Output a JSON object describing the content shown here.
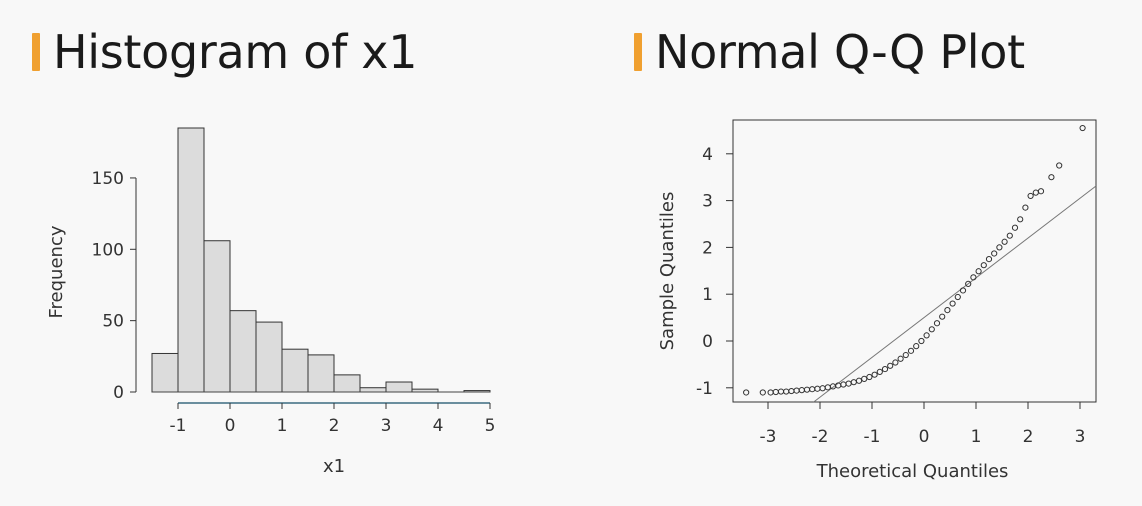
{
  "accent_color": "#f0a030",
  "chart_data": [
    {
      "type": "bar",
      "title": "Histogram of x1",
      "xlabel": "x1",
      "ylabel": "Frequency",
      "bin_edges": [
        -1.5,
        -1,
        -0.5,
        0,
        0.5,
        1,
        1.5,
        2,
        2.5,
        3,
        3.5,
        4,
        4.5,
        5
      ],
      "values": [
        27,
        185,
        106,
        57,
        49,
        30,
        26,
        12,
        3,
        7,
        2,
        0,
        1
      ],
      "xticks": [
        -1,
        0,
        1,
        2,
        3,
        4,
        5
      ],
      "xtick_labels": [
        "-1",
        "0",
        "1",
        "2",
        "3",
        "4",
        "5"
      ],
      "yticks": [
        0,
        50,
        100,
        150
      ],
      "ytick_labels": [
        "0",
        "50",
        "100",
        "150"
      ],
      "ylim": [
        0,
        185
      ],
      "bar_color": "#dcdcdc",
      "grid": false
    },
    {
      "type": "scatter",
      "title": "Normal Q-Q Plot",
      "xlabel": "Theoretical Quantiles",
      "ylabel": "Sample Quantiles",
      "xticks": [
        -3,
        -2,
        -1,
        0,
        1,
        2,
        3
      ],
      "xtick_labels": [
        "-3",
        "-2",
        "-1",
        "0",
        "1",
        "2",
        "3"
      ],
      "yticks": [
        -1,
        0,
        1,
        2,
        3,
        4
      ],
      "ytick_labels": [
        "-1",
        "0",
        "1",
        "2",
        "3",
        "4"
      ],
      "xlim": [
        -3.3,
        3.1
      ],
      "ylim": [
        -1.2,
        4.6
      ],
      "x": [
        -3.42,
        -3.1,
        -2.95,
        -2.85,
        -2.75,
        -2.65,
        -2.55,
        -2.45,
        -2.35,
        -2.25,
        -2.15,
        -2.05,
        -1.95,
        -1.85,
        -1.75,
        -1.65,
        -1.55,
        -1.45,
        -1.35,
        -1.25,
        -1.15,
        -1.05,
        -0.95,
        -0.85,
        -0.75,
        -0.65,
        -0.55,
        -0.45,
        -0.35,
        -0.25,
        -0.15,
        -0.05,
        0.05,
        0.15,
        0.25,
        0.35,
        0.45,
        0.55,
        0.65,
        0.75,
        0.85,
        0.95,
        1.05,
        1.15,
        1.25,
        1.35,
        1.45,
        1.55,
        1.65,
        1.75,
        1.85,
        1.95,
        2.05,
        2.15,
        2.25,
        2.45,
        2.6,
        3.05
      ],
      "y": [
        -1.1,
        -1.1,
        -1.1,
        -1.09,
        -1.08,
        -1.08,
        -1.07,
        -1.06,
        -1.05,
        -1.04,
        -1.03,
        -1.02,
        -1.01,
        -0.99,
        -0.97,
        -0.95,
        -0.93,
        -0.91,
        -0.88,
        -0.85,
        -0.81,
        -0.77,
        -0.72,
        -0.66,
        -0.6,
        -0.53,
        -0.46,
        -0.38,
        -0.3,
        -0.21,
        -0.11,
        0.0,
        0.12,
        0.25,
        0.38,
        0.52,
        0.66,
        0.8,
        0.94,
        1.08,
        1.22,
        1.36,
        1.49,
        1.62,
        1.75,
        1.87,
        2.0,
        2.12,
        2.25,
        2.42,
        2.6,
        2.85,
        3.1,
        3.17,
        3.2,
        3.5,
        3.75,
        4.55
      ],
      "reference_line": {
        "intercept": 0.5,
        "slope": 0.85
      },
      "grid": false
    }
  ]
}
